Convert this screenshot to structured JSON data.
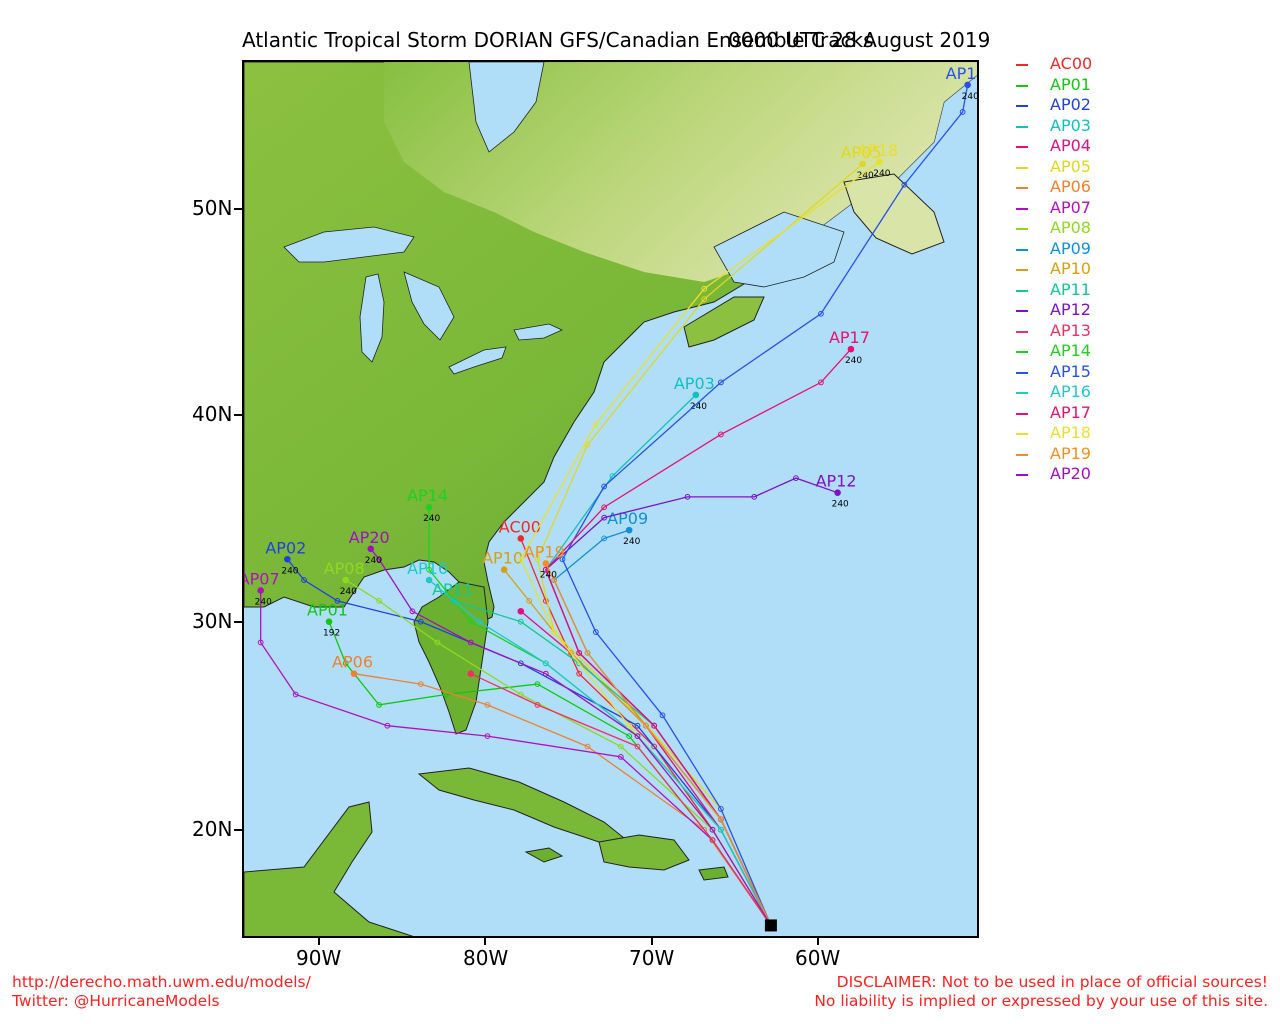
{
  "title": {
    "main": "Atlantic Tropical Storm DORIAN GFS/Canadian Ensemble Tracks",
    "time": "0000 UTC 28 August 2019"
  },
  "axes": {
    "lat_labels": [
      "50N",
      "40N",
      "30N",
      "20N"
    ],
    "lon_labels": [
      "90W",
      "80W",
      "70W",
      "60W"
    ]
  },
  "footer": {
    "url": "http://derecho.math.uwm.edu/models/",
    "twitter": "Twitter: @HurricaneModels",
    "disclaimer1": "DISCLAIMER: Not to be used in place of official sources!",
    "disclaimer2": "No liability is implied or expressed by your use of this site."
  },
  "colors": {
    "ocean": "#b0def8",
    "land_low": "#6aa832",
    "land_high": "#f2eec6",
    "frame": "#000000"
  },
  "chart_data": {
    "type": "map-tracks",
    "lon_range": [
      -94.6,
      -50.4
    ],
    "lat_range": [
      15.2,
      57.4
    ],
    "series": [
      {
        "name": "AC00",
        "color": "#f02828",
        "points": [
          [
            -63.0,
            15.9
          ],
          [
            -66.5,
            20.5
          ],
          [
            -70.0,
            24.5
          ],
          [
            -74.5,
            28.0
          ],
          [
            -76.5,
            31.5
          ],
          [
            -78.0,
            34.5
          ]
        ],
        "end_hour": ""
      },
      {
        "name": "AP01",
        "color": "#10c810",
        "points": [
          [
            -63.0,
            15.9
          ],
          [
            -66.5,
            20.0
          ],
          [
            -71.5,
            25.0
          ],
          [
            -77.0,
            27.5
          ],
          [
            -82.5,
            27.0
          ],
          [
            -86.5,
            26.5
          ],
          [
            -88.5,
            28.5
          ],
          [
            -89.5,
            30.5
          ]
        ],
        "end_hour": "192"
      },
      {
        "name": "AP02",
        "color": "#2040e0",
        "points": [
          [
            -63.0,
            15.9
          ],
          [
            -66.0,
            20.5
          ],
          [
            -71.0,
            25.5
          ],
          [
            -78.0,
            28.5
          ],
          [
            -84.0,
            30.5
          ],
          [
            -89.0,
            31.5
          ],
          [
            -91.0,
            32.5
          ],
          [
            -92.0,
            33.5
          ]
        ],
        "end_hour": "240"
      },
      {
        "name": "AP03",
        "color": "#10c0c0",
        "points": [
          [
            -63.0,
            15.9
          ],
          [
            -66.0,
            21.0
          ],
          [
            -70.0,
            25.5
          ],
          [
            -74.5,
            29.0
          ],
          [
            -76.5,
            33.0
          ],
          [
            -72.5,
            37.5
          ],
          [
            -67.5,
            41.4
          ]
        ],
        "end_hour": "240"
      },
      {
        "name": "AP04",
        "color": "#e01080",
        "points": [
          [
            -63.0,
            15.9
          ],
          [
            -66.0,
            20.5
          ],
          [
            -70.5,
            25.5
          ],
          [
            -75.0,
            29.0
          ],
          [
            -78.0,
            31.0
          ]
        ],
        "end_hour": ""
      },
      {
        "name": "AP05",
        "color": "#e0d820",
        "points": [
          [
            -63.0,
            15.9
          ],
          [
            -66.0,
            21.5
          ],
          [
            -71.0,
            26.0
          ],
          [
            -76.0,
            30.0
          ],
          [
            -77.0,
            33.5
          ],
          [
            -74.0,
            39.0
          ],
          [
            -67.0,
            46.0
          ],
          [
            -57.5,
            52.5
          ]
        ],
        "end_hour": "240"
      },
      {
        "name": "AP06",
        "color": "#f08030",
        "points": [
          [
            -63.0,
            15.9
          ],
          [
            -67.0,
            20.5
          ],
          [
            -74.0,
            24.5
          ],
          [
            -80.0,
            26.5
          ],
          [
            -84.0,
            27.5
          ],
          [
            -88.0,
            28.0
          ]
        ],
        "end_hour": ""
      },
      {
        "name": "AP07",
        "color": "#b010c0",
        "points": [
          [
            -63.0,
            15.9
          ],
          [
            -66.5,
            20.0
          ],
          [
            -72.0,
            24.0
          ],
          [
            -80.0,
            25.0
          ],
          [
            -86.0,
            25.5
          ],
          [
            -91.5,
            27.0
          ],
          [
            -93.6,
            29.5
          ],
          [
            -93.6,
            32.0
          ]
        ],
        "end_hour": "240"
      },
      {
        "name": "AP08",
        "color": "#90d820",
        "points": [
          [
            -63.0,
            15.9
          ],
          [
            -66.5,
            20.5
          ],
          [
            -72.0,
            24.5
          ],
          [
            -78.0,
            27.0
          ],
          [
            -83.0,
            29.5
          ],
          [
            -86.5,
            31.5
          ],
          [
            -88.5,
            32.5
          ]
        ],
        "end_hour": "240"
      },
      {
        "name": "AP09",
        "color": "#1090d8",
        "points": [
          [
            -63.0,
            15.9
          ],
          [
            -66.0,
            21.0
          ],
          [
            -70.5,
            25.5
          ],
          [
            -74.0,
            29.0
          ],
          [
            -76.0,
            32.5
          ],
          [
            -73.0,
            34.5
          ],
          [
            -71.5,
            34.9
          ]
        ],
        "end_hour": "240"
      },
      {
        "name": "AP10",
        "color": "#d8a010",
        "points": [
          [
            -63.0,
            15.9
          ],
          [
            -66.0,
            21.0
          ],
          [
            -70.5,
            25.5
          ],
          [
            -75.0,
            29.0
          ],
          [
            -77.5,
            31.5
          ],
          [
            -79.0,
            33.0
          ]
        ],
        "end_hour": ""
      },
      {
        "name": "AP11",
        "color": "#10c890",
        "points": [
          [
            -63.0,
            15.9
          ],
          [
            -66.0,
            21.0
          ],
          [
            -70.0,
            25.5
          ],
          [
            -74.5,
            28.5
          ],
          [
            -78.0,
            30.5
          ],
          [
            -82.0,
            31.5
          ]
        ],
        "end_hour": ""
      },
      {
        "name": "AP12",
        "color": "#8010c8",
        "points": [
          [
            -63.0,
            15.9
          ],
          [
            -66.0,
            21.0
          ],
          [
            -70.0,
            25.5
          ],
          [
            -74.5,
            29.0
          ],
          [
            -76.5,
            33.0
          ],
          [
            -73.0,
            35.5
          ],
          [
            -68.0,
            36.5
          ],
          [
            -64.0,
            36.5
          ],
          [
            -61.5,
            37.4
          ],
          [
            -59.0,
            36.7
          ]
        ],
        "end_hour": "240"
      },
      {
        "name": "AP13",
        "color": "#f03060",
        "points": [
          [
            -63.0,
            15.9
          ],
          [
            -66.5,
            20.0
          ],
          [
            -71.0,
            24.5
          ],
          [
            -77.0,
            26.5
          ],
          [
            -81.0,
            28.0
          ]
        ],
        "end_hour": ""
      },
      {
        "name": "AP14",
        "color": "#20d020",
        "points": [
          [
            -63.0,
            15.9
          ],
          [
            -66.0,
            20.5
          ],
          [
            -71.0,
            25.0
          ],
          [
            -76.5,
            28.5
          ],
          [
            -81.0,
            30.5
          ],
          [
            -83.5,
            33.0
          ],
          [
            -83.5,
            36.0
          ]
        ],
        "end_hour": "240"
      },
      {
        "name": "AP15",
        "color": "#2850f0",
        "points": [
          [
            -63.0,
            15.9
          ],
          [
            -66.0,
            21.5
          ],
          [
            -69.5,
            26.0
          ],
          [
            -73.5,
            30.0
          ],
          [
            -75.5,
            33.5
          ],
          [
            -73.0,
            37.0
          ],
          [
            -66.0,
            42.0
          ],
          [
            -60.0,
            45.3
          ],
          [
            -55.0,
            51.5
          ],
          [
            -51.5,
            55.0
          ],
          [
            -51.2,
            56.3
          ]
        ],
        "end_hour": "240"
      },
      {
        "name": "AP16",
        "color": "#20c8c8",
        "points": [
          [
            -63.0,
            15.9
          ],
          [
            -66.0,
            20.5
          ],
          [
            -71.0,
            25.0
          ],
          [
            -76.5,
            28.5
          ],
          [
            -80.5,
            30.5
          ],
          [
            -83.5,
            32.5
          ]
        ],
        "end_hour": ""
      },
      {
        "name": "AP17",
        "color": "#e81070",
        "points": [
          [
            -63.0,
            15.9
          ],
          [
            -66.0,
            21.0
          ],
          [
            -70.0,
            25.5
          ],
          [
            -74.5,
            29.0
          ],
          [
            -76.5,
            33.0
          ],
          [
            -73.0,
            36.0
          ],
          [
            -66.0,
            39.5
          ],
          [
            -60.0,
            42.0
          ],
          [
            -58.2,
            43.6
          ]
        ],
        "end_hour": "240"
      },
      {
        "name": "AP18",
        "color": "#e8e030",
        "points": [
          [
            -63.0,
            15.9
          ],
          [
            -66.5,
            20.5
          ],
          [
            -71.5,
            25.5
          ],
          [
            -76.0,
            30.0
          ],
          [
            -78.0,
            33.5
          ],
          [
            -73.5,
            40.0
          ],
          [
            -67.0,
            46.5
          ],
          [
            -56.5,
            52.6
          ]
        ],
        "end_hour": "240"
      },
      {
        "name": "AP19",
        "color": "#f09020",
        "points": [
          [
            -63.0,
            15.9
          ],
          [
            -66.0,
            21.0
          ],
          [
            -70.5,
            25.5
          ],
          [
            -74.0,
            29.0
          ],
          [
            -76.0,
            32.5
          ],
          [
            -76.5,
            33.3
          ]
        ],
        "end_hour": "240"
      },
      {
        "name": "AP20",
        "color": "#a010c0",
        "points": [
          [
            -63.0,
            15.9
          ],
          [
            -66.5,
            20.5
          ],
          [
            -71.0,
            25.0
          ],
          [
            -76.5,
            28.0
          ],
          [
            -81.0,
            29.5
          ],
          [
            -84.5,
            31.0
          ],
          [
            -86.5,
            33.5
          ],
          [
            -87.0,
            34.0
          ]
        ],
        "end_hour": "240"
      }
    ]
  }
}
